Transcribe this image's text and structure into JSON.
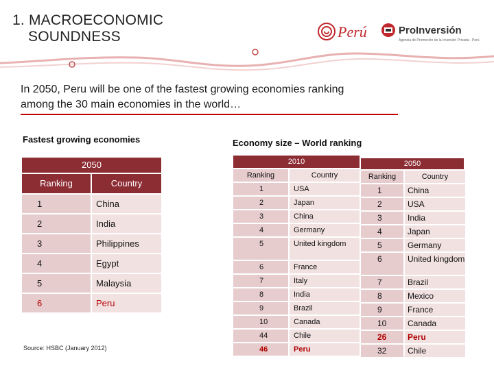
{
  "title": {
    "line1": "1. MACROECONOMIC",
    "line2": "SOUNDNESS"
  },
  "logos": {
    "peru": "Perú",
    "proinversion": "ProInversión",
    "proinversion_tagline": "Agencia de Promoción de la Inversión Privada - Perú"
  },
  "heading": {
    "line1": "In 2050, Peru will be one of the fastest growing economies ranking",
    "line2": "among the 30 main economies in the world…"
  },
  "left": {
    "subtitle": "Fastest growing economies",
    "year": "2050",
    "col_rank": "Ranking",
    "col_country": "Country",
    "rows": [
      {
        "rank": "1",
        "country": "China"
      },
      {
        "rank": "2",
        "country": "India"
      },
      {
        "rank": "3",
        "country": "Philippines"
      },
      {
        "rank": "4",
        "country": "Egypt"
      },
      {
        "rank": "5",
        "country": "Malaysia"
      },
      {
        "rank": "6",
        "country": "Peru"
      }
    ],
    "source": "Source: HSBC (January 2012)"
  },
  "right": {
    "subtitle": "Economy size – World ranking",
    "year_a": "2010",
    "year_b": "2050",
    "col_rank": "Ranking",
    "col_country": "Country",
    "rows_2010": [
      {
        "rank": "1",
        "country": "USA"
      },
      {
        "rank": "2",
        "country": "Japan"
      },
      {
        "rank": "3",
        "country": "China"
      },
      {
        "rank": "4",
        "country": "Germany"
      },
      {
        "rank": "5",
        "country": "United kingdom"
      },
      {
        "rank": "6",
        "country": "France"
      },
      {
        "rank": "7",
        "country": "Italy"
      },
      {
        "rank": "8",
        "country": "India"
      },
      {
        "rank": "9",
        "country": "Brazil"
      },
      {
        "rank": "10",
        "country": "Canada"
      },
      {
        "rank": "44",
        "country": "Chile"
      },
      {
        "rank": "46",
        "country": "Peru"
      }
    ],
    "rows_2050": [
      {
        "rank": "1",
        "country": "China"
      },
      {
        "rank": "2",
        "country": "USA"
      },
      {
        "rank": "3",
        "country": "India"
      },
      {
        "rank": "4",
        "country": "Japan"
      },
      {
        "rank": "5",
        "country": "Germany"
      },
      {
        "rank": "6",
        "country": "United kingdom"
      },
      {
        "rank": "7",
        "country": "Brazil"
      },
      {
        "rank": "8",
        "country": "Mexico"
      },
      {
        "rank": "9",
        "country": "France"
      },
      {
        "rank": "10",
        "country": "Canada"
      },
      {
        "rank": "26",
        "country": "Peru"
      },
      {
        "rank": "32",
        "country": "Chile"
      }
    ]
  },
  "colors": {
    "accent": "#8c2c33",
    "rank_bg": "#e7cccd",
    "country_bg": "#f2e1e1",
    "highlight": "#b00000"
  }
}
